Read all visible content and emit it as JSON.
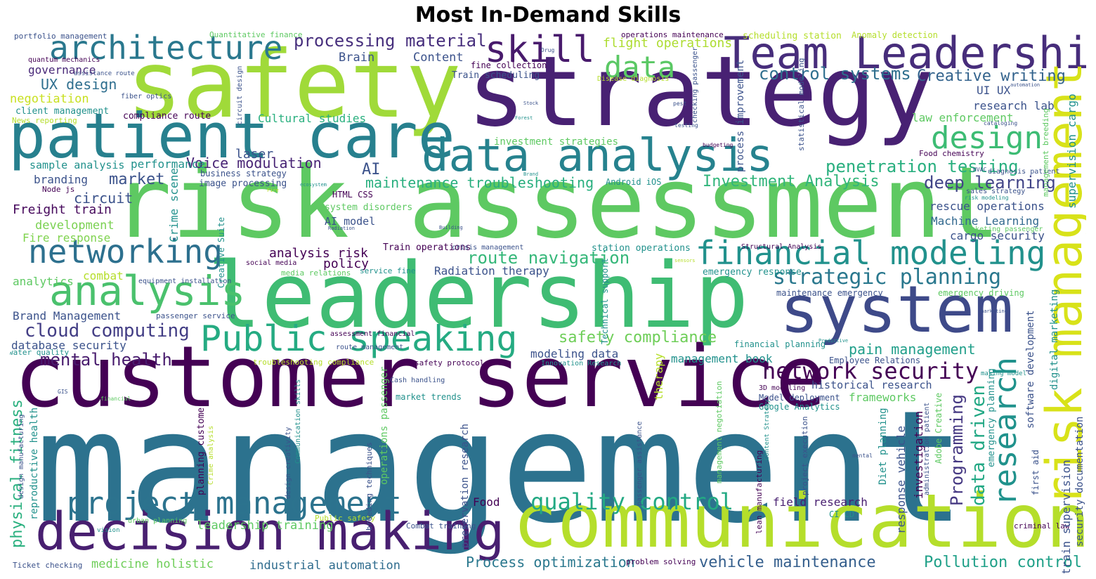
{
  "title": "Most In-Demand Skills",
  "words": [
    {
      "text": "management",
      "color": "#2c728e"
    },
    {
      "text": "customer service",
      "color": "#440154"
    },
    {
      "text": "risk assessment",
      "color": "#5ec962"
    },
    {
      "text": "leadership",
      "color": "#3fbc73"
    },
    {
      "text": "strategy",
      "color": "#482173"
    },
    {
      "text": "safety",
      "color": "#a0da39"
    },
    {
      "text": "communication",
      "color": "#b5de2b"
    },
    {
      "text": "patient care",
      "color": "#27808e"
    },
    {
      "text": "system",
      "color": "#3e4a89"
    },
    {
      "text": "Team Leadership",
      "color": "#472d7b"
    },
    {
      "text": "risk management",
      "color": "#d8e219"
    },
    {
      "text": "decision making",
      "color": "#481f70"
    },
    {
      "text": "data analysis",
      "color": "#26828e"
    },
    {
      "text": "skill",
      "color": "#481a6c"
    },
    {
      "text": "architecture",
      "color": "#2a788e"
    },
    {
      "text": "financial modeling",
      "color": "#21918c"
    },
    {
      "text": "analysis",
      "color": "#4ac16d"
    },
    {
      "text": "networking",
      "color": "#2d708e"
    },
    {
      "text": "Public speaking",
      "color": "#25ab82"
    },
    {
      "text": "project management",
      "color": "#2c738e"
    },
    {
      "text": "research",
      "color": "#20928c"
    },
    {
      "text": "design",
      "color": "#3dbc74"
    },
    {
      "text": "network security",
      "color": "#440154"
    },
    {
      "text": "data",
      "color": "#5ac864"
    },
    {
      "text": "quality control",
      "color": "#23a983"
    },
    {
      "text": "strategic planning",
      "color": "#2a788e"
    },
    {
      "text": "cloud computing",
      "color": "#433e85"
    },
    {
      "text": "processing material",
      "color": "#472f7d"
    },
    {
      "text": "mental health",
      "color": "#481b6d"
    },
    {
      "text": "route navigation",
      "color": "#35b779"
    },
    {
      "text": "penetration testing",
      "color": "#29af7f"
    },
    {
      "text": "deep learning",
      "color": "#414487"
    },
    {
      "text": "control systems",
      "color": "#2e6f8e"
    },
    {
      "text": "vehicle maintenance",
      "color": "#355f8d"
    },
    {
      "text": "Pollution control",
      "color": "#1fa088"
    },
    {
      "text": "Process optimization",
      "color": "#2a788e"
    },
    {
      "text": "flight operations",
      "color": "#addc30"
    },
    {
      "text": "Creative writing",
      "color": "#33638d"
    },
    {
      "text": "Investment Analysis",
      "color": "#31b57b"
    },
    {
      "text": "maintenance troubleshooting",
      "color": "#29af7f"
    },
    {
      "text": "Voice modulation",
      "color": "#482475"
    },
    {
      "text": "safety compliance",
      "color": "#6ece58"
    },
    {
      "text": "pain management",
      "color": "#1f9e89"
    },
    {
      "text": "Programming",
      "color": "#453882"
    },
    {
      "text": "data driven",
      "color": "#22a884"
    },
    {
      "text": "industrial automation",
      "color": "#2f6c8e"
    },
    {
      "text": "leadership training",
      "color": "#5ec962"
    },
    {
      "text": "medicine holistic",
      "color": "#6ece58"
    },
    {
      "text": "UX design",
      "color": "#2e6e8e"
    },
    {
      "text": "governance",
      "color": "#482878"
    },
    {
      "text": "negotiation",
      "color": "#c8e020"
    },
    {
      "text": "market",
      "color": "#3b528b"
    },
    {
      "text": "branding",
      "color": "#3b528b"
    },
    {
      "text": "circuit",
      "color": "#3b528b"
    },
    {
      "text": "Freight train",
      "color": "#46085c"
    },
    {
      "text": "development",
      "color": "#7ad151"
    },
    {
      "text": "Fire response",
      "color": "#7fd34e"
    },
    {
      "text": "analytics",
      "color": "#5ec962"
    },
    {
      "text": "combat",
      "color": "#b5de2b"
    },
    {
      "text": "Brand Management",
      "color": "#3b528b"
    },
    {
      "text": "database security",
      "color": "#3b528b"
    },
    {
      "text": "physical fitness",
      "color": "#2ab07f"
    },
    {
      "text": "sample analysis",
      "color": "#21918c"
    },
    {
      "text": "performance",
      "color": "#21918c"
    },
    {
      "text": "laser",
      "color": "#3b528b"
    },
    {
      "text": "AI",
      "color": "#3b528b"
    },
    {
      "text": "Cultural studies",
      "color": "#2ab07f"
    },
    {
      "text": "Brain",
      "color": "#3b528b"
    },
    {
      "text": "Content",
      "color": "#3b528b"
    },
    {
      "text": "analysis risk",
      "color": "#440154"
    },
    {
      "text": "policy",
      "color": "#440154"
    },
    {
      "text": "Radiation therapy",
      "color": "#3b528b"
    },
    {
      "text": "research lab",
      "color": "#3b528b"
    },
    {
      "text": "UI UX",
      "color": "#3b528b"
    },
    {
      "text": "law enforcement",
      "color": "#5ec962"
    },
    {
      "text": "rescue operations",
      "color": "#3b528b"
    },
    {
      "text": "Machine Learning",
      "color": "#31688e"
    },
    {
      "text": "cargo security",
      "color": "#3b528b"
    },
    {
      "text": "frameworks",
      "color": "#5ec962"
    },
    {
      "text": "historical research",
      "color": "#3b528b"
    },
    {
      "text": "management book",
      "color": "#21918c"
    },
    {
      "text": "modeling data",
      "color": "#3b528b"
    },
    {
      "text": "field research",
      "color": "#481f70"
    },
    {
      "text": "Food",
      "color": "#440154"
    },
    {
      "text": "AI model",
      "color": "#3b528b"
    },
    {
      "text": "Crime scene",
      "color": "#21918c"
    },
    {
      "text": "investment strategies",
      "color": "#5ec962"
    },
    {
      "text": "emergency response",
      "color": "#21918c"
    },
    {
      "text": "station operations",
      "color": "#21918c"
    },
    {
      "text": "Train operations",
      "color": "#440154"
    },
    {
      "text": "business strategy",
      "color": "#3b528b"
    },
    {
      "text": "image processing",
      "color": "#3b528b"
    },
    {
      "text": "Android iOS",
      "color": "#21918c"
    },
    {
      "text": "HTML CSS",
      "color": "#440154"
    },
    {
      "text": "system disorders",
      "color": "#5ec962"
    },
    {
      "text": "Train scheduling",
      "color": "#3b528b"
    },
    {
      "text": "compliance route",
      "color": "#440154"
    },
    {
      "text": "client management",
      "color": "#21918c"
    },
    {
      "text": "News reporting",
      "color": "#b5de2b"
    },
    {
      "text": "Node js",
      "color": "#440154"
    },
    {
      "text": "portfolio management",
      "color": "#3b528b"
    },
    {
      "text": "quantum mechanics",
      "color": "#440154"
    },
    {
      "text": "Quantitative finance",
      "color": "#5ec962"
    },
    {
      "text": "operations maintenance",
      "color": "#440154"
    },
    {
      "text": "scheduling station",
      "color": "#b5de2b"
    },
    {
      "text": "Anomaly detection",
      "color": "#b5de2b"
    },
    {
      "text": "fine collection",
      "color": "#440154"
    },
    {
      "text": "sales strategy",
      "color": "#3b528b"
    },
    {
      "text": "risk modeling",
      "color": "#21918c"
    },
    {
      "text": "Ticketing passenger",
      "color": "#5ec962"
    },
    {
      "text": "Food chemistry",
      "color": "#440154"
    },
    {
      "text": "emergency driving",
      "color": "#5ec962"
    },
    {
      "text": "Employee Relations",
      "color": "#3b528b"
    },
    {
      "text": "Google Analytics",
      "color": "#21918c"
    },
    {
      "text": "Model deployment",
      "color": "#3b528b"
    },
    {
      "text": "3D modeling",
      "color": "#440154"
    },
    {
      "text": "financial planning",
      "color": "#21918c"
    },
    {
      "text": "maintenance emergency",
      "color": "#3b528b"
    },
    {
      "text": "Innovation Research",
      "color": "#21918c"
    },
    {
      "text": "safety protocols",
      "color": "#440154"
    },
    {
      "text": "Cash handling",
      "color": "#3b528b"
    },
    {
      "text": "market trends",
      "color": "#21918c"
    },
    {
      "text": "troubleshooting compliance",
      "color": "#b5de2b"
    },
    {
      "text": "route management",
      "color": "#3b528b"
    },
    {
      "text": "assessment financial",
      "color": "#440154"
    },
    {
      "text": "passenger service",
      "color": "#3b528b"
    },
    {
      "text": "water quality",
      "color": "#21918c"
    },
    {
      "text": "media relations",
      "color": "#5ec962"
    },
    {
      "text": "service fine",
      "color": "#21918c"
    },
    {
      "text": "social media",
      "color": "#440154"
    },
    {
      "text": "equipment installation",
      "color": "#3b528b"
    },
    {
      "text": "crisis management",
      "color": "#3b528b"
    },
    {
      "text": "Structural Analysis",
      "color": "#440154"
    },
    {
      "text": "Combat training",
      "color": "#3b528b"
    },
    {
      "text": "Public safety",
      "color": "#b5de2b"
    },
    {
      "text": "urban planning",
      "color": "#5ec962"
    },
    {
      "text": "CI CD",
      "color": "#21918c"
    },
    {
      "text": "problem solving",
      "color": "#440154"
    },
    {
      "text": "Ticket checking",
      "color": "#3b528b"
    },
    {
      "text": "criminal law",
      "color": "#440154"
    },
    {
      "text": "first aid",
      "color": "#3b528b"
    },
    {
      "text": "vision",
      "color": "#21918c"
    },
    {
      "text": "fiber optics",
      "color": "#3b528b"
    },
    {
      "text": "assistance route",
      "color": "#3b528b"
    },
    {
      "text": "Disease diagnosis",
      "color": "#b5de2b"
    },
    {
      "text": "diagnosis patient",
      "color": "#3b528b"
    },
    {
      "text": "HVAC",
      "color": "#3b528b"
    },
    {
      "text": "Brand",
      "color": "#21918c"
    },
    {
      "text": "Stock",
      "color": "#3b528b"
    },
    {
      "text": "Forest",
      "color": "#21918c"
    },
    {
      "text": "pest",
      "color": "#3b528b"
    },
    {
      "text": "testing",
      "color": "#3b528b"
    },
    {
      "text": "budgeting",
      "color": "#440154"
    },
    {
      "text": "cataloging",
      "color": "#3b528b"
    },
    {
      "text": "automation",
      "color": "#3b528b"
    },
    {
      "text": "Drug",
      "color": "#3b528b"
    },
    {
      "text": "Building",
      "color": "#3b528b"
    },
    {
      "text": "Radiation",
      "color": "#3b528b"
    },
    {
      "text": "Fire",
      "color": "#b5de2b"
    },
    {
      "text": "ecosystem",
      "color": "#21918c"
    },
    {
      "text": "Predictive",
      "color": "#21918c"
    },
    {
      "text": "marketing",
      "color": "#3b528b"
    },
    {
      "text": "making model",
      "color": "#21918c"
    },
    {
      "text": "mental",
      "color": "#3b528b"
    },
    {
      "text": "financial",
      "color": "#5ec962"
    },
    {
      "text": "GIS",
      "color": "#3b528b"
    },
    {
      "text": "sensors",
      "color": "#b5de2b"
    },
    {
      "text": "Creative Suite",
      "color": "#21918c"
    },
    {
      "text": "circuit design",
      "color": "#3b528b"
    },
    {
      "text": "checking passenger",
      "color": "#3b528b"
    },
    {
      "text": "process improvement",
      "color": "#3b528b"
    },
    {
      "text": "statistical modeling",
      "color": "#3b528b"
    },
    {
      "text": "supervision cargo",
      "color": "#21918c"
    },
    {
      "text": "management breeding",
      "color": "#5ec962"
    },
    {
      "text": "digital marketing",
      "color": "#21918c"
    },
    {
      "text": "security documentation",
      "color": "#3b528b"
    },
    {
      "text": "train supervision",
      "color": "#3b528b"
    },
    {
      "text": "software development",
      "color": "#3b528b"
    },
    {
      "text": "emergency planning",
      "color": "#21918c"
    },
    {
      "text": "Adobe Creative",
      "color": "#5ec962"
    },
    {
      "text": "administration patient",
      "color": "#3b528b"
    },
    {
      "text": "investigation",
      "color": "#440154"
    },
    {
      "text": "response vehicle",
      "color": "#3b528b"
    },
    {
      "text": "Diet planning",
      "color": "#21918c"
    },
    {
      "text": "project execution",
      "color": "#3b528b"
    },
    {
      "text": "lean manufacturing",
      "color": "#440154"
    },
    {
      "text": "Content Strategy",
      "color": "#21918c"
    },
    {
      "text": "management negotiation",
      "color": "#5ec962"
    },
    {
      "text": "passenger assistance",
      "color": "#3b528b"
    },
    {
      "text": "Technical support",
      "color": "#21918c"
    },
    {
      "text": "therapy",
      "color": "#b5de2b"
    },
    {
      "text": "preservation research",
      "color": "#3b528b"
    },
    {
      "text": "operations passenger",
      "color": "#5ec962"
    },
    {
      "text": "breeding techniques",
      "color": "#3b528b"
    },
    {
      "text": "Communication skills",
      "color": "#21918c"
    },
    {
      "text": "design creativity",
      "color": "#3b528b"
    },
    {
      "text": "Crime analysis",
      "color": "#b5de2b"
    },
    {
      "text": "planning customer",
      "color": "#440154"
    },
    {
      "text": "design manufacturing",
      "color": "#3b528b"
    },
    {
      "text": "reproductive health",
      "color": "#21918c"
    }
  ]
}
